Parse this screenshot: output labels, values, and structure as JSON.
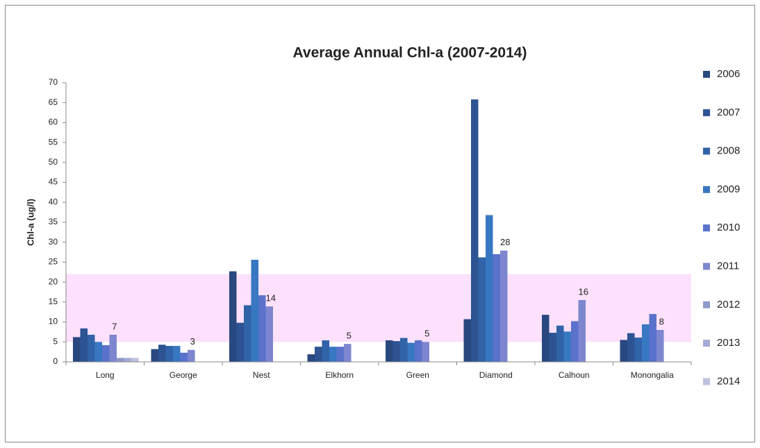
{
  "chart_data": {
    "type": "bar",
    "title": "Average Annual Chl-a (2007-2014)",
    "y_label": "Chl-a (ug/l)",
    "categories": [
      "Long",
      "George",
      "Nest",
      "Elkhorn",
      "Green",
      "Diamond",
      "Calhoun",
      "Monongalia"
    ],
    "series": [
      {
        "name": "2006",
        "color": "#28487f",
        "values": [
          6.2,
          3.2,
          22.7,
          1.9,
          5.4,
          10.7,
          11.8,
          5.5
        ]
      },
      {
        "name": "2007",
        "color": "#2d5393",
        "values": [
          8.4,
          4.3,
          9.8,
          3.8,
          5.2,
          65.8,
          7.3,
          7.2
        ]
      },
      {
        "name": "2008",
        "color": "#3163a8",
        "values": [
          6.8,
          4.0,
          14.2,
          5.4,
          6.0,
          26.2,
          9.1,
          6.1
        ]
      },
      {
        "name": "2009",
        "color": "#3877c2",
        "values": [
          5.0,
          4.0,
          25.6,
          3.8,
          4.8,
          36.8,
          7.6,
          9.4
        ]
      },
      {
        "name": "2010",
        "color": "#5a72cc",
        "values": [
          4.2,
          2.3,
          16.7,
          3.8,
          5.4,
          27.0,
          10.2,
          12.0
        ]
      },
      {
        "name": "2011",
        "color": "#7d86cf",
        "values": [
          6.8,
          3.0,
          13.9,
          4.5,
          5.0,
          27.9,
          15.5,
          8.0
        ],
        "value_labels": [
          "7",
          "3",
          "14",
          "5",
          "5",
          "28",
          "16",
          "8"
        ]
      },
      {
        "name": "2012",
        "color": "#8e9ac8",
        "values": [
          1.0,
          null,
          null,
          null,
          null,
          null,
          null,
          null
        ]
      },
      {
        "name": "2013",
        "color": "#a4abd4",
        "values": [
          1.0,
          null,
          null,
          null,
          null,
          null,
          null,
          null
        ]
      },
      {
        "name": "2014",
        "color": "#bcc2de",
        "values": [
          1.0,
          null,
          null,
          null,
          null,
          null,
          null,
          null
        ]
      }
    ],
    "band": {
      "range": [
        5,
        22
      ],
      "color": "#fde0fb"
    },
    "ylim": [
      0,
      70
    ],
    "yticks": [
      0,
      5,
      10,
      15,
      20,
      25,
      30,
      35,
      40,
      45,
      50,
      55,
      60,
      65,
      70
    ],
    "grid": false,
    "legend": "right"
  }
}
